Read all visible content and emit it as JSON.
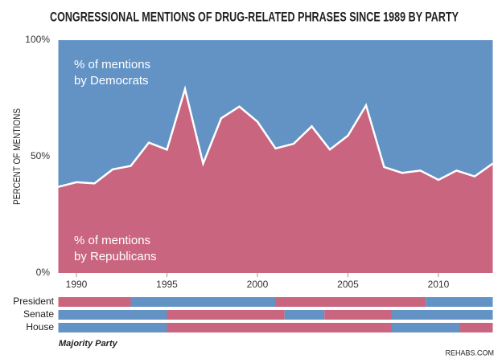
{
  "chart_data": {
    "type": "stacked_area_percent",
    "title": "CONGRESSIONAL MENTIONS OF DRUG-RELATED PHRASES SINCE 1989 BY PARTY",
    "y_label": "PERCENT OF MENTIONS",
    "x": [
      1989,
      1990,
      1991,
      1992,
      1993,
      1994,
      1995,
      1996,
      1997,
      1998,
      1999,
      2000,
      2001,
      2002,
      2003,
      2004,
      2005,
      2006,
      2007,
      2008,
      2009,
      2010,
      2011,
      2012,
      2013
    ],
    "series": [
      {
        "name": "% of mentions by Republicans",
        "label_lines": [
          "% of mentions",
          "by Republicans"
        ],
        "color": "#c9657f",
        "values": [
          37,
          39,
          38.5,
          44.5,
          46,
          56,
          53,
          79,
          47,
          66.5,
          71.5,
          65,
          53.5,
          55.5,
          63,
          53,
          59,
          72,
          45.5,
          43,
          44,
          40,
          44,
          41.5,
          47
        ]
      },
      {
        "name": "% of mentions by Democrats",
        "label_lines": [
          "% of mentions",
          "by Democrats"
        ],
        "color": "#6393c5",
        "values": [
          63,
          61,
          61.5,
          55.5,
          54,
          44,
          47,
          21,
          53,
          33.5,
          28.5,
          35,
          46.5,
          44.5,
          37,
          47,
          41,
          28,
          54.5,
          57,
          56,
          60,
          56,
          58.5,
          53
        ]
      }
    ],
    "xlim": [
      1989,
      2013
    ],
    "xticks": [
      1990,
      1995,
      2000,
      2005,
      2010
    ],
    "ylim": [
      0,
      100
    ],
    "yticks": [
      {
        "value": 0,
        "label": "0%"
      },
      {
        "value": 50,
        "label": "50%"
      },
      {
        "value": 100,
        "label": "100%"
      }
    ],
    "majority_party": {
      "title": "Majority Party",
      "rows": [
        {
          "name": "President",
          "segments": [
            {
              "start": 1989,
              "end": 1993,
              "color": "#c9657f"
            },
            {
              "start": 1993,
              "end": 2001,
              "color": "#6393c5"
            },
            {
              "start": 2001,
              "end": 2009.3,
              "color": "#c9657f"
            },
            {
              "start": 2009.3,
              "end": 2013,
              "color": "#6393c5"
            }
          ]
        },
        {
          "name": "Senate",
          "segments": [
            {
              "start": 1989,
              "end": 1995,
              "color": "#6393c5"
            },
            {
              "start": 1995,
              "end": 2001.5,
              "color": "#c9657f"
            },
            {
              "start": 2001.5,
              "end": 2003.7,
              "color": "#6393c5"
            },
            {
              "start": 2003.7,
              "end": 2007.4,
              "color": "#c9657f"
            },
            {
              "start": 2007.4,
              "end": 2013,
              "color": "#6393c5"
            }
          ]
        },
        {
          "name": "House",
          "segments": [
            {
              "start": 1989,
              "end": 1995,
              "color": "#6393c5"
            },
            {
              "start": 1995,
              "end": 2007.4,
              "color": "#c9657f"
            },
            {
              "start": 2007.4,
              "end": 2011.2,
              "color": "#6393c5"
            },
            {
              "start": 2011.2,
              "end": 2013,
              "color": "#c9657f"
            }
          ]
        }
      ]
    },
    "source": "REHABS.COM"
  }
}
